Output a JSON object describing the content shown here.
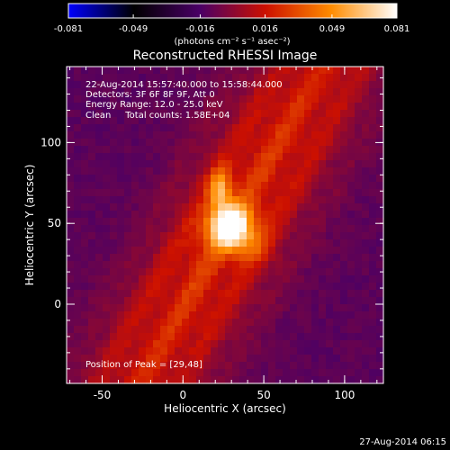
{
  "background_color": "#000000",
  "colorbar": {
    "tick_labels": [
      "-0.081",
      "-0.049",
      "-0.016",
      "0.016",
      "0.049",
      "0.081"
    ],
    "tick_values": [
      -0.081,
      -0.049,
      -0.016,
      0.016,
      0.049,
      0.081
    ],
    "range": [
      -0.081,
      0.081
    ],
    "units_text": "(photons cm⁻² s⁻¹ asec⁻²)",
    "colormap": [
      "#0000ff",
      "#000000",
      "#4a0066",
      "#cc1000",
      "#ff8c00",
      "#ffffff"
    ]
  },
  "chart_data": {
    "type": "heatmap",
    "title": "Reconstructed RHESSI Image",
    "xlabel": "Heliocentric X (arcsec)",
    "ylabel": "Heliocentric Y (arcsec)",
    "xlim": [
      -72,
      124
    ],
    "ylim": [
      -49,
      147
    ],
    "x_ticks": [
      -50,
      0,
      50,
      100
    ],
    "y_ticks": [
      0,
      50,
      100
    ],
    "x_tick_labels": [
      "-50",
      "0",
      "50",
      "100"
    ],
    "y_tick_labels": [
      "0",
      "50",
      "100"
    ],
    "annotations": [
      "22-Aug-2014 15:57:40.000 to 15:58:44.000",
      "Detectors: 3F 6F 8F 9F, Att 0",
      "Energy Range: 12.0 - 25.0 keV",
      "Clean     Total counts: 1.58E+04"
    ],
    "peak_label": "Position of Peak = [29,48]",
    "peak": {
      "x": 29,
      "y": 48
    },
    "sources": [
      {
        "x": 29,
        "y": 48,
        "sx": 10,
        "sy": 9,
        "amp": 0.081
      },
      {
        "x": 23,
        "y": 71,
        "sx": 5,
        "sy": 9,
        "amp": 0.045
      },
      {
        "x": 42,
        "y": 35,
        "sx": 9,
        "sy": 7,
        "amp": 0.018
      }
    ],
    "ribbon": {
      "angle_deg": 60,
      "x0": 29,
      "y0": 48,
      "width": 52,
      "amp": 0.03
    },
    "stripe_period": 24
  },
  "footer": {
    "timestamp": "27-Aug-2014 06:15"
  }
}
